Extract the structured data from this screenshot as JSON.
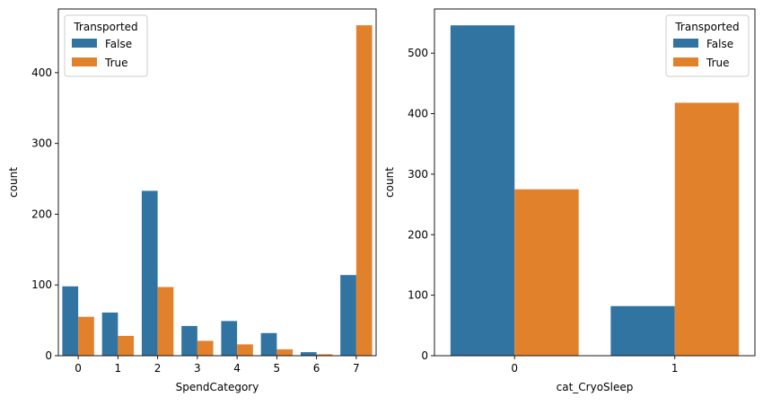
{
  "chart_data": [
    {
      "type": "bar",
      "categories": [
        "0",
        "1",
        "2",
        "3",
        "4",
        "5",
        "6",
        "7"
      ],
      "series": [
        {
          "name": "False",
          "color": "#3274a1",
          "values": [
            98,
            61,
            233,
            42,
            49,
            32,
            5,
            114
          ]
        },
        {
          "name": "True",
          "color": "#e1812c",
          "values": [
            55,
            28,
            97,
            21,
            16,
            9,
            2,
            467
          ]
        }
      ],
      "title": "",
      "xlabel": "SpendCategory",
      "ylabel": "count",
      "ylim": [
        0,
        490
      ],
      "yticks": [
        0,
        100,
        200,
        300,
        400
      ],
      "legend": {
        "title": "Transported",
        "placement": "top-left"
      },
      "grid": false
    },
    {
      "type": "bar",
      "categories": [
        "0",
        "1"
      ],
      "series": [
        {
          "name": "False",
          "color": "#3274a1",
          "values": [
            546,
            82
          ]
        },
        {
          "name": "True",
          "color": "#e1812c",
          "values": [
            275,
            418
          ]
        }
      ],
      "title": "",
      "xlabel": "cat_CryoSleep",
      "ylabel": "count",
      "ylim": [
        0,
        573
      ],
      "yticks": [
        0,
        100,
        200,
        300,
        400,
        500
      ],
      "legend": {
        "title": "Transported",
        "placement": "top-right"
      },
      "grid": false
    }
  ]
}
